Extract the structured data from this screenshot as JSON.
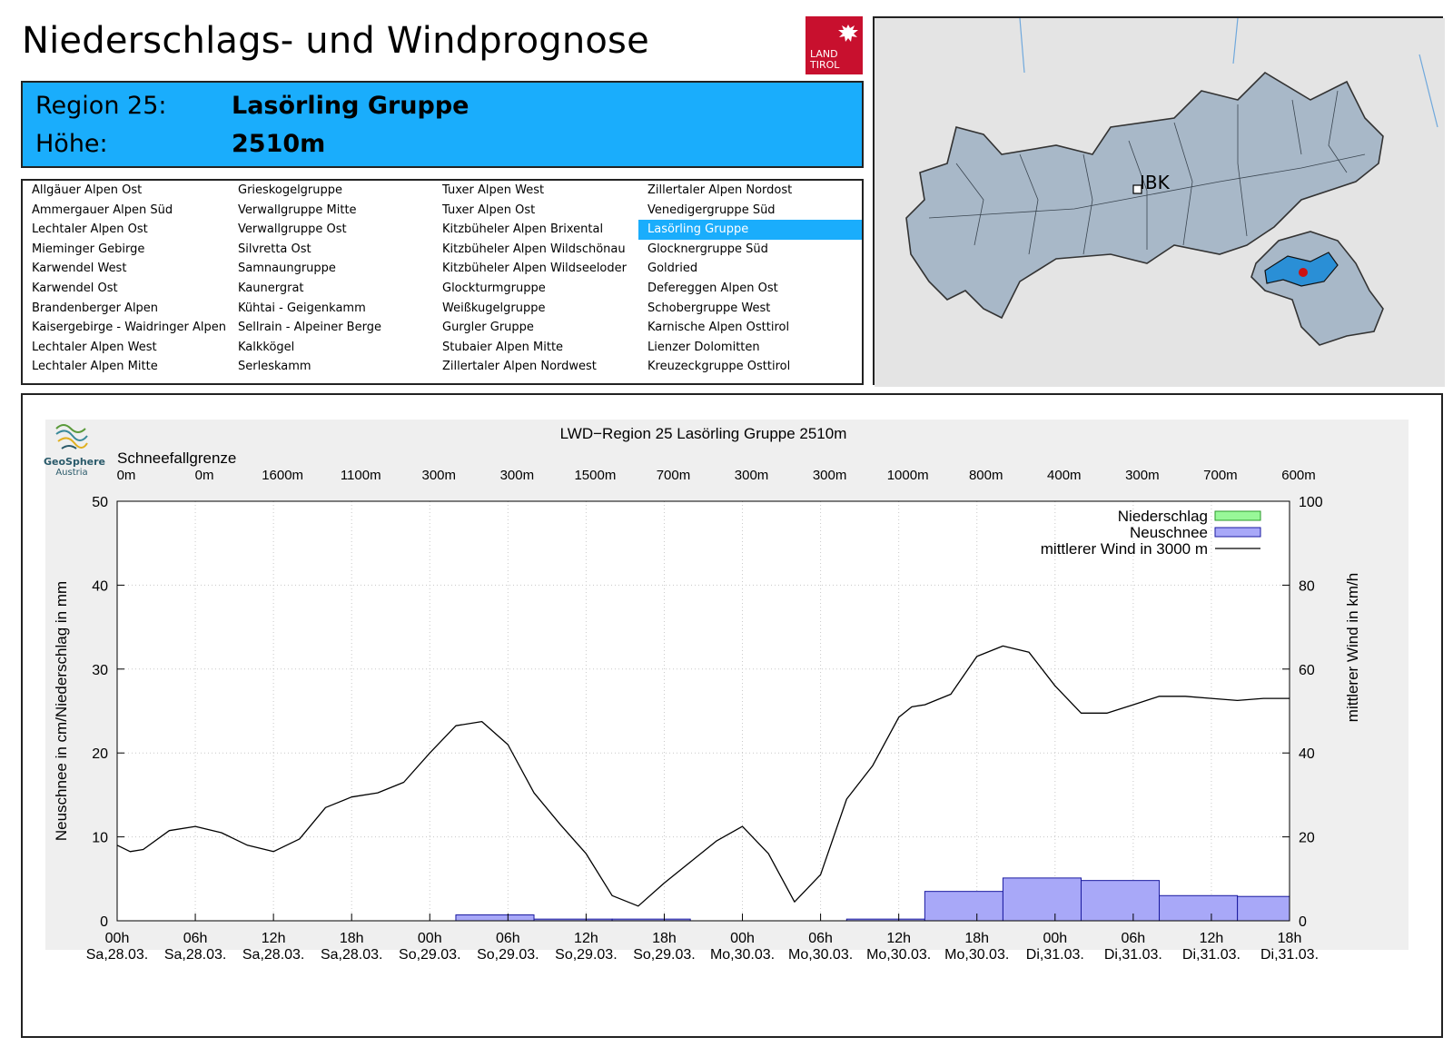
{
  "header": {
    "title": "Niederschlags- und Windprognose",
    "logo_line1": "LAND",
    "logo_line2": "TIROL",
    "logo_color": "#c8102e"
  },
  "region": {
    "region_label": "Region 25:",
    "region_value": "Lasörling Gruppe",
    "height_label": "Höhe:",
    "height_value": "2510m",
    "box_color": "#1aadfc"
  },
  "regions": [
    [
      "Allgäuer Alpen Ost",
      "Ammergauer Alpen Süd",
      "Lechtaler Alpen Ost",
      "Mieminger Gebirge",
      "Karwendel West",
      "Karwendel Ost",
      "Brandenberger Alpen",
      "Kaisergebirge - Waidringer Alpen",
      "Lechtaler Alpen West",
      "Lechtaler Alpen Mitte"
    ],
    [
      "Grieskogelgruppe",
      "Verwallgruppe Mitte",
      "Verwallgruppe Ost",
      "Silvretta Ost",
      "Samnaungruppe",
      "Kaunergrat",
      "Kühtai - Geigenkamm",
      "Sellrain - Alpeiner Berge",
      "Kalkkögel",
      "Serleskamm"
    ],
    [
      "Tuxer Alpen West",
      "Tuxer Alpen Ost",
      "Kitzbüheler Alpen Brixental",
      "Kitzbüheler Alpen Wildschönau",
      "Kitzbüheler Alpen Wildseeloder",
      "Glockturmgruppe",
      "Weißkugelgruppe",
      "Gurgler Gruppe",
      "Stubaier Alpen Mitte",
      "Zillertaler Alpen Nordwest"
    ],
    [
      "Zillertaler Alpen Nordost",
      "Venedigergruppe Süd",
      "Lasörling Gruppe",
      "Glocknergruppe Süd",
      "Goldried",
      "Defereggen Alpen Ost",
      "Schobergruppe West",
      "Karnische Alpen Osttirol",
      "Lienzer Dolomitten",
      "Kreuzeckgruppe Osttirol"
    ]
  ],
  "selected_region": "Lasörling Gruppe",
  "map": {
    "city_label": "IBK",
    "fill_color": "#a8b8c8",
    "selected_color": "#2a8fd6",
    "marker_color": "#cc1111"
  },
  "branding": {
    "org_line1": "GeoSphere",
    "org_line2": "Austria"
  },
  "chart_data": {
    "type": "bar+line",
    "title": "LWD−Region 25 Lasörling Gruppe 2510m",
    "snowline_label": "Schneefallgrenze",
    "snowline": [
      "0m",
      "0m",
      "1600m",
      "1100m",
      "300m",
      "300m",
      "1500m",
      "700m",
      "300m",
      "300m",
      "1000m",
      "800m",
      "400m",
      "300m",
      "700m",
      "600m"
    ],
    "ylabel_left": "Neuschnee in cm/Niederschlag in mm",
    "ylabel_right": "mittlerer Wind in km/h",
    "ylim_left": [
      0,
      50
    ],
    "ylim_right": [
      0,
      100
    ],
    "yticks_left": [
      "0",
      "10",
      "20",
      "30",
      "40",
      "50"
    ],
    "yticks_right": [
      "0",
      "20",
      "40",
      "60",
      "80",
      "100"
    ],
    "x_ticks": [
      [
        "00h",
        "Sa,28.03."
      ],
      [
        "06h",
        "Sa,28.03."
      ],
      [
        "12h",
        "Sa,28.03."
      ],
      [
        "18h",
        "Sa,28.03."
      ],
      [
        "00h",
        "So,29.03."
      ],
      [
        "06h",
        "So,29.03."
      ],
      [
        "12h",
        "So,29.03."
      ],
      [
        "18h",
        "So,29.03."
      ],
      [
        "00h",
        "Mo,30.03."
      ],
      [
        "06h",
        "Mo,30.03."
      ],
      [
        "12h",
        "Mo,30.03."
      ],
      [
        "18h",
        "Mo,30.03."
      ],
      [
        "00h",
        "Di,31.03."
      ],
      [
        "06h",
        "Di,31.03."
      ],
      [
        "12h",
        "Di,31.03."
      ],
      [
        "18h",
        "Di,31.03."
      ]
    ],
    "x_range_hours": [
      0,
      90
    ],
    "legend": [
      {
        "label": "Niederschlag",
        "color": "#98f898"
      },
      {
        "label": "Neuschnee",
        "color": "#a8a8f8"
      },
      {
        "label": "mittlerer Wind in 3000 m",
        "color": "#000000"
      }
    ],
    "legend_position": "top-right",
    "grid": true,
    "neuschnee": [
      {
        "from": 0,
        "to": 6,
        "value": 0
      },
      {
        "from": 6,
        "to": 12,
        "value": 0
      },
      {
        "from": 12,
        "to": 18,
        "value": 0
      },
      {
        "from": 18,
        "to": 24,
        "value": 0
      },
      {
        "from": 24,
        "to": 30,
        "value": 0
      },
      {
        "from": 26,
        "to": 32,
        "value": 0.7
      },
      {
        "from": 32,
        "to": 38,
        "value": 0.2
      },
      {
        "from": 38,
        "to": 44,
        "value": 0.2
      },
      {
        "from": 56,
        "to": 62,
        "value": 0.2
      },
      {
        "from": 62,
        "to": 68,
        "value": 3.5
      },
      {
        "from": 68,
        "to": 74,
        "value": 5.1
      },
      {
        "from": 74,
        "to": 80,
        "value": 4.8
      },
      {
        "from": 80,
        "to": 86,
        "value": 3.0
      },
      {
        "from": 86,
        "to": 90,
        "value": 2.9
      }
    ],
    "wind": {
      "hours": [
        0,
        1,
        2,
        4,
        6,
        8,
        10,
        12,
        14,
        16,
        18,
        20,
        22,
        24,
        26,
        28,
        30,
        32,
        34,
        36,
        38,
        40,
        42,
        44,
        46,
        48,
        50,
        52,
        54,
        56,
        58,
        60,
        61,
        62,
        64,
        66,
        68,
        70,
        72,
        74,
        76,
        78,
        80,
        82,
        84,
        86,
        88,
        89,
        90
      ],
      "values": [
        18,
        16.5,
        17,
        21.5,
        22.5,
        21,
        18,
        16.5,
        19.5,
        27,
        29.5,
        30.5,
        33,
        40,
        46.5,
        47.5,
        42,
        30.5,
        23,
        16,
        6,
        3.5,
        9,
        14,
        19,
        22.5,
        16,
        4.5,
        11,
        29,
        37,
        48.5,
        51,
        51.5,
        54,
        63,
        65.5,
        64,
        56,
        49.5,
        49.5,
        51.5,
        53.5,
        53.5,
        53,
        52.5,
        53,
        53,
        53
      ]
    }
  }
}
